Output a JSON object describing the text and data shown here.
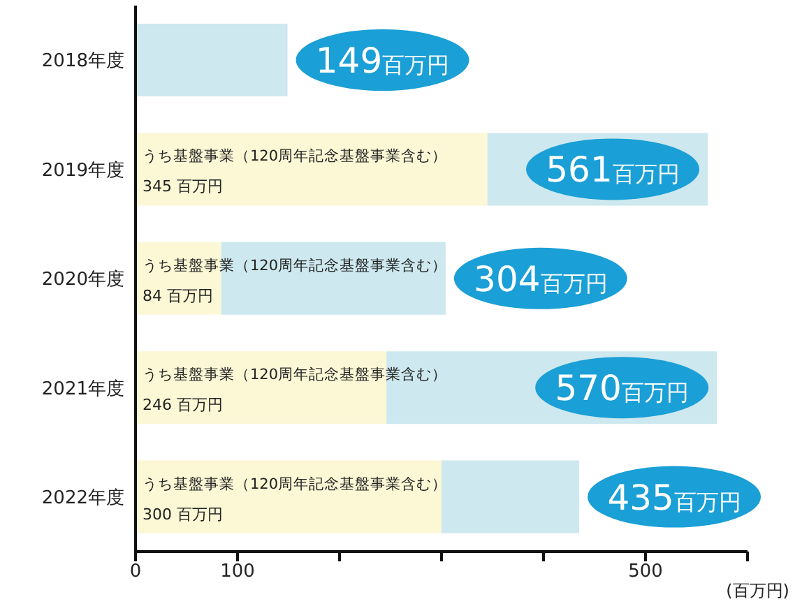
{
  "chart_data": {
    "type": "bar",
    "orientation": "horizontal",
    "stacked": true,
    "categories": [
      "2018年度",
      "2019年度",
      "2020年度",
      "2021年度",
      "2022年度"
    ],
    "series": [
      {
        "name": "うち基盤事業（120周年記念基盤事業含む）",
        "color": "#fcf8d6",
        "values": [
          null,
          345,
          84,
          246,
          300
        ],
        "value_labels": [
          null,
          "345 百万円",
          "84 百万円",
          "246 百万円",
          "300 百万円"
        ]
      },
      {
        "color": "#cde8ee",
        "values": [
          149,
          216,
          220,
          324,
          135
        ]
      }
    ],
    "totals": [
      "149百万円",
      "561百万円",
      "304百万円",
      "570百万円",
      "435百万円"
    ],
    "xlabel": "(百万円)",
    "xlim": [
      0,
      600
    ],
    "xticks": [
      0,
      100,
      {
        "value": 200,
        "label": null
      },
      {
        "value": 300,
        "label": null
      },
      {
        "value": 400,
        "label": null
      },
      500,
      {
        "value": 600,
        "label": null
      }
    ],
    "grid": false,
    "legend": false
  }
}
